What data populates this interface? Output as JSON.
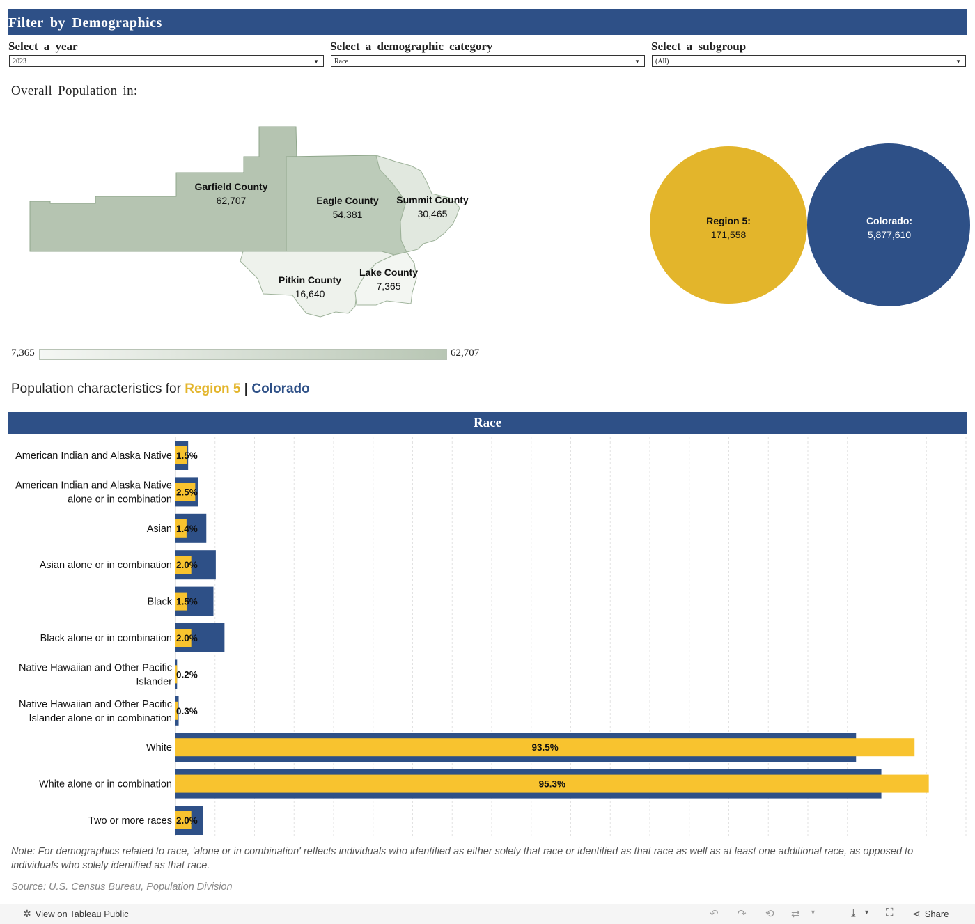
{
  "header": {
    "title": "Filter by Demographics"
  },
  "filters": {
    "year": {
      "label": "Select a year",
      "value": "2023"
    },
    "category": {
      "label": "Select a demographic category",
      "value": "Race"
    },
    "subgroup": {
      "label": "Select a subgroup",
      "value": "(All)"
    }
  },
  "overall": {
    "title": "Overall Population in:"
  },
  "counties": [
    {
      "name": "Garfield County",
      "value": "62,707"
    },
    {
      "name": "Eagle County",
      "value": "54,381"
    },
    {
      "name": "Summit County",
      "value": "30,465"
    },
    {
      "name": "Pitkin County",
      "value": "16,640"
    },
    {
      "name": "Lake County",
      "value": "7,365"
    }
  ],
  "legend": {
    "min": "7,365",
    "max": "62,707"
  },
  "bubbles": {
    "region": {
      "label": "Region 5:",
      "value": "171,558",
      "color": "#e3b52b"
    },
    "state": {
      "label": "Colorado:",
      "value": "5,877,610",
      "color": "#2e5087"
    }
  },
  "characteristics": {
    "prefix": "Population characteristics for",
    "region": "Region 5",
    "separator": "|",
    "state": "Colorado",
    "region_color": "#e3b52b",
    "state_color": "#2e5087"
  },
  "chart_data": {
    "type": "bar",
    "title": "Race",
    "categories": [
      "American Indian and Alaska Native",
      "American Indian and Alaska Native alone or in combination",
      "Asian",
      "Asian alone or in combination",
      "Black",
      "Black alone or in combination",
      "Native Hawaiian and Other Pacific Islander",
      "Native Hawaiian and Other Pacific Islander alone or in combination",
      "White",
      "White alone or in combination",
      "Two or more races"
    ],
    "label_lines": [
      [
        "American Indian and Alaska Native"
      ],
      [
        "American Indian and Alaska Native",
        "alone or in combination"
      ],
      [
        "Asian"
      ],
      [
        "Asian alone or in combination"
      ],
      [
        "Black"
      ],
      [
        "Black alone or in combination"
      ],
      [
        "Native Hawaiian and Other Pacific",
        "Islander"
      ],
      [
        "Native Hawaiian and Other Pacific",
        "Islander alone or in combination"
      ],
      [
        "White"
      ],
      [
        "White alone or in combination"
      ],
      [
        "Two or more races"
      ]
    ],
    "series": [
      {
        "name": "Colorado",
        "color": "#2e5087",
        "values": [
          1.6,
          2.9,
          3.9,
          5.1,
          4.8,
          6.2,
          0.2,
          0.4,
          86.1,
          89.3,
          3.5
        ]
      },
      {
        "name": "Region 5",
        "color": "#f8c32f",
        "values": [
          1.5,
          2.5,
          1.4,
          2.0,
          1.5,
          2.0,
          0.2,
          0.3,
          93.5,
          95.3,
          2.0
        ]
      }
    ],
    "data_labels": [
      "1.5%",
      "2.5%",
      "1.4%",
      "2.0%",
      "1.5%",
      "2.0%",
      "0.2%",
      "0.3%",
      "93.5%",
      "95.3%",
      "2.0%"
    ],
    "xlim": [
      0,
      100
    ],
    "grid": true
  },
  "note": "Note: For demographics related to race, 'alone or in combination' reflects individuals who identified as either solely that race or identified as that race as well as at least one additional race, as opposed to individuals who solely identified as that race.",
  "source": "Source: U.S. Census Bureau, Population Division",
  "footer": {
    "view_label": "View on Tableau Public",
    "share_label": "Share"
  }
}
